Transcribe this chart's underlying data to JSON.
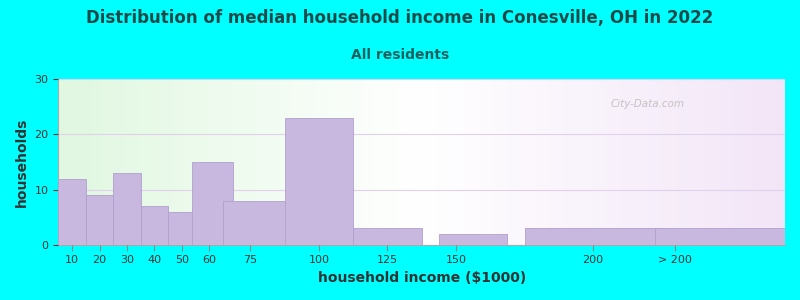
{
  "title": "Distribution of median household income in Conesville, OH in 2022",
  "subtitle": "All residents",
  "xlabel": "household income ($1000)",
  "ylabel": "households",
  "bar_labels": [
    "10",
    "20",
    "30",
    "40",
    "50",
    "60",
    "75",
    "100",
    "125",
    "150",
    "200",
    "> 200"
  ],
  "bar_values": [
    12,
    9,
    13,
    7,
    6,
    15,
    8,
    23,
    3,
    2,
    3,
    3
  ],
  "bin_edges": [
    5,
    15,
    25,
    35,
    45,
    55,
    67.5,
    87.5,
    112.5,
    137.5,
    175,
    225,
    270
  ],
  "bar_widths": [
    10,
    10,
    10,
    10,
    10,
    15,
    25,
    25,
    25,
    25,
    50,
    50
  ],
  "tick_positions": [
    10,
    20,
    30,
    40,
    50,
    60,
    75,
    100,
    125,
    150,
    200,
    230
  ],
  "bar_color": "#c8b8e0",
  "bar_edge_color": "#b0a0cc",
  "ylim": [
    0,
    30
  ],
  "yticks": [
    0,
    10,
    20,
    30
  ],
  "background_color": "#00ffff",
  "title_color": "#1a4a4a",
  "subtitle_color": "#1a6060",
  "watermark": "City-Data.com",
  "title_fontsize": 12,
  "subtitle_fontsize": 10,
  "label_fontsize": 9,
  "tick_fontsize": 8
}
